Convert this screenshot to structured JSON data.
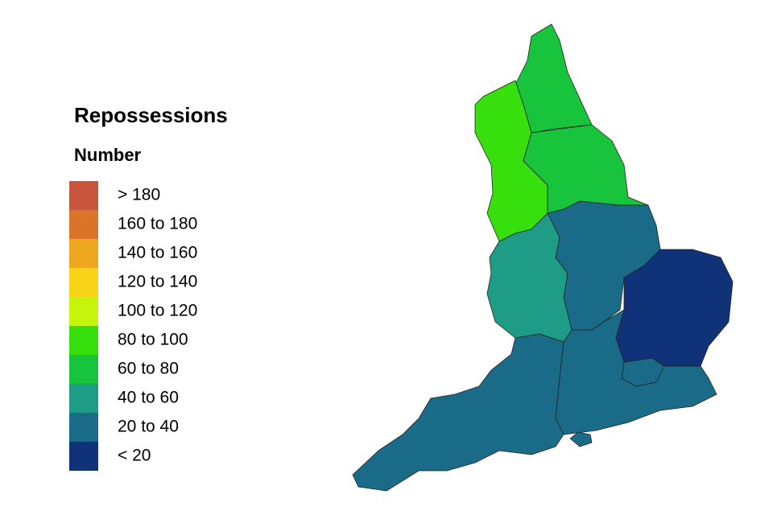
{
  "title": "Repossessions",
  "subtitle": "Number",
  "legend": [
    {
      "label": "> 180",
      "color": "#c8553d"
    },
    {
      "label": "160 to 180",
      "color": "#db7328"
    },
    {
      "label": "140 to 160",
      "color": "#eea820"
    },
    {
      "label": "120 to 140",
      "color": "#f7d417"
    },
    {
      "label": "100 to 120",
      "color": "#c4f50a"
    },
    {
      "label": "80 to 100",
      "color": "#37e00d"
    },
    {
      "label": "60 to 80",
      "color": "#17c43c"
    },
    {
      "label": "40 to 60",
      "color": "#1e9c85"
    },
    {
      "label": "20 to 40",
      "color": "#1a6b87"
    },
    {
      "label": "< 20",
      "color": "#0f3278"
    }
  ],
  "regions": [
    {
      "color": "#17c43c"
    },
    {
      "color": "#37e00d"
    },
    {
      "color": "#17c43c"
    },
    {
      "color": "#1a6b87"
    },
    {
      "color": "#1e9c85"
    },
    {
      "color": "#0f3278"
    },
    {
      "color": "#1a6b87"
    },
    {
      "color": "#1a6b87"
    },
    {
      "color": "#1a6b87"
    },
    {
      "color": "#1a6b87"
    }
  ]
}
